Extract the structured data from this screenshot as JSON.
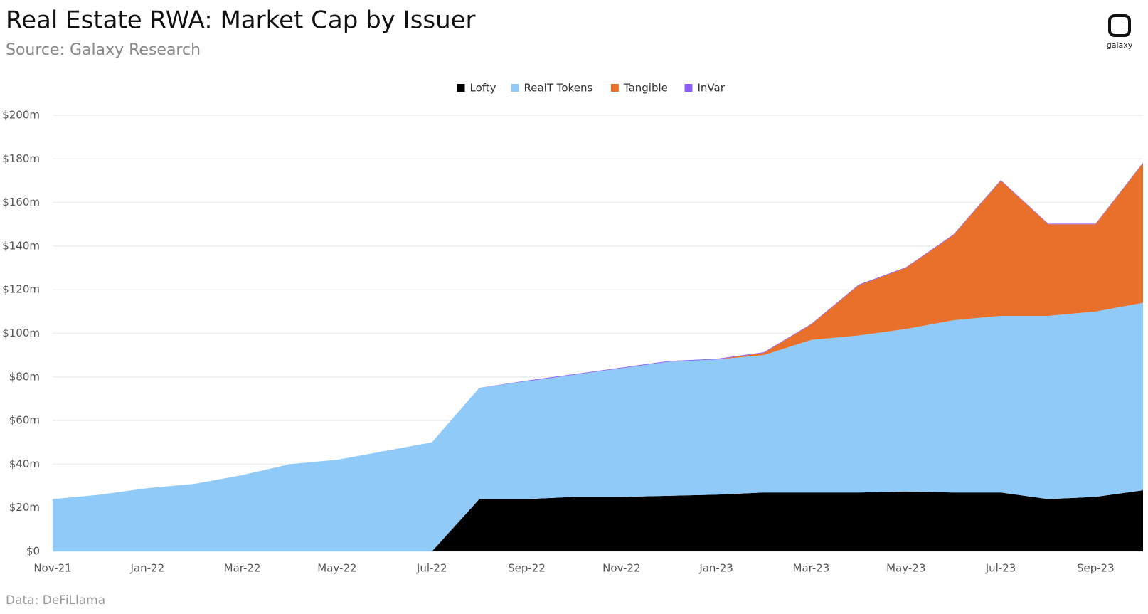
{
  "chart_data": {
    "type": "stacked_area",
    "title": "Real Estate RWA: Market Cap by Issuer",
    "subtitle": "Source: Galaxy Research",
    "footnote": "Data: DeFiLlama",
    "logo_text": "galaxy",
    "categories": [
      "Nov-21",
      null,
      "Jan-22",
      null,
      "Mar-22",
      null,
      "May-22",
      null,
      "Jul-22",
      null,
      "Sep-22",
      null,
      "Nov-22",
      null,
      "Jan-23",
      null,
      "Mar-23",
      null,
      "May-23",
      null,
      "Jul-23",
      null,
      "Sep-23",
      null
    ],
    "series": [
      {
        "name": "Lofty",
        "color": "#000000",
        "values": [
          0,
          0,
          0,
          0,
          0,
          0,
          0,
          0,
          0,
          24,
          24,
          25,
          25,
          25.5,
          26,
          27,
          27,
          27,
          27.5,
          27,
          27,
          24,
          25,
          28
        ]
      },
      {
        "name": "RealT Tokens",
        "color": "#90caf9",
        "values": [
          24,
          26,
          29,
          31,
          35,
          40,
          42,
          46,
          50,
          51,
          54,
          56,
          59,
          61.5,
          62,
          63,
          70,
          72,
          74.5,
          79,
          81,
          84,
          85,
          86
        ]
      },
      {
        "name": "Tangible",
        "color": "#e8702a",
        "values": [
          0,
          0,
          0,
          0,
          0,
          0,
          0,
          0,
          0,
          0,
          0,
          0,
          0,
          0,
          0,
          1,
          7,
          23,
          28,
          39,
          62,
          42,
          40,
          64
        ]
      },
      {
        "name": "InVar",
        "color": "#8b5cf6",
        "values": [
          0,
          0,
          0,
          0,
          0,
          0,
          0,
          0,
          0,
          0,
          0.3,
          0.3,
          0.3,
          0.3,
          0.3,
          0.3,
          0.3,
          0.3,
          0.3,
          0.3,
          0.3,
          0.3,
          0.3,
          0.3
        ]
      }
    ],
    "ylim": [
      0,
      200
    ],
    "yticks": [
      {
        "value": 0,
        "label": "$0"
      },
      {
        "value": 20,
        "label": "$20m"
      },
      {
        "value": 40,
        "label": "$40m"
      },
      {
        "value": 60,
        "label": "$60m"
      },
      {
        "value": 80,
        "label": "$80m"
      },
      {
        "value": 100,
        "label": "$100m"
      },
      {
        "value": 120,
        "label": "$120m"
      },
      {
        "value": 140,
        "label": "$140m"
      },
      {
        "value": 160,
        "label": "$160m"
      },
      {
        "value": 180,
        "label": "$180m"
      },
      {
        "value": 200,
        "label": "$200m"
      }
    ],
    "grid": true,
    "legend": "top"
  }
}
